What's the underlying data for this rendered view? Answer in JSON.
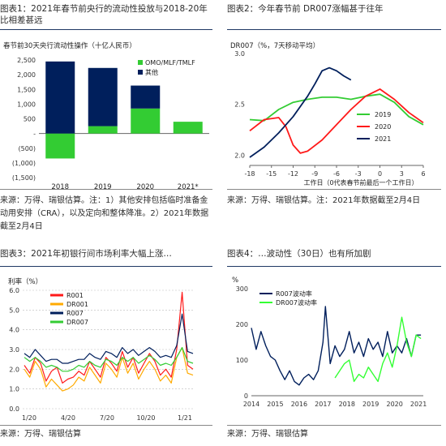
{
  "panels": [
    {
      "title": "图表1：2021年春节前央行的流动性投放与2018-20年比相差甚远",
      "note": "来源：万得、瑞银估算。注：1）其他安排包括临时准备金动用安排（CRA），以及定向和整体降准。2）2021年数据截至2月4日"
    },
    {
      "title": "图表2：今年春节前 DR007涨幅甚于往年",
      "note": "来源：万得、瑞银估算。注：2021年数据截至2月4日"
    },
    {
      "title": "图表3：2021年初银行间市场利率大幅上涨…",
      "note": "来源：万得、瑞银估算"
    },
    {
      "title": "图表4：…波动性（30日）也有所加剧",
      "note": "来源：万得、瑞银估算"
    }
  ],
  "chart_data": [
    {
      "type": "bar",
      "subtitle": "春节前30天央行流动性操作（十亿人民币）",
      "categories": [
        "2018",
        "2019",
        "2020",
        "2021*"
      ],
      "series": [
        {
          "name": "OMO/MLF/TMLF",
          "color": "#33cc33",
          "values": [
            -850,
            250,
            850,
            400
          ]
        },
        {
          "name": "其他",
          "color": "#001f5c",
          "values": [
            2450,
            1980,
            780,
            0
          ]
        }
      ],
      "yticks": [
        "2,500",
        "2,000",
        "1,500",
        "1,000",
        "500",
        "-",
        "(500)",
        "(1,000)",
        "(1,500)"
      ],
      "ylim": [
        -1500,
        2500
      ],
      "legend": "top-right"
    },
    {
      "type": "line",
      "subtitle": "DR007（%，7天移动平均）",
      "xlabel": "工作日（0代表春节前最后一个工作日）",
      "x_range": [
        -18,
        6
      ],
      "xticks": [
        "-18",
        "-15",
        "-12",
        "-9",
        "-6",
        "-3",
        "0",
        "3",
        "6"
      ],
      "yticks": [
        "3.0",
        "2.5",
        "2.0"
      ],
      "ylim": [
        1.9,
        3.0
      ],
      "series": [
        {
          "name": "2019",
          "color": "#33cc33",
          "x": [
            -18,
            -16,
            -14,
            -12,
            -10,
            -8,
            -6,
            -4,
            -2,
            0,
            2,
            4,
            6
          ],
          "y": [
            2.35,
            2.34,
            2.45,
            2.52,
            2.55,
            2.57,
            2.57,
            2.55,
            2.58,
            2.6,
            2.52,
            2.38,
            2.3
          ]
        },
        {
          "name": "2020",
          "color": "#ff1a1a",
          "x": [
            -18,
            -16,
            -14,
            -13,
            -12,
            -11,
            -10,
            -8,
            -6,
            -4,
            -2,
            0,
            2,
            4,
            6
          ],
          "y": [
            2.24,
            2.35,
            2.37,
            2.28,
            2.1,
            2.02,
            2.04,
            2.15,
            2.3,
            2.45,
            2.58,
            2.65,
            2.55,
            2.42,
            2.32
          ]
        },
        {
          "name": "2021",
          "color": "#001f5c",
          "x": [
            -18,
            -16,
            -14,
            -12,
            -10,
            -9,
            -8,
            -7,
            -6,
            -5,
            -4
          ],
          "y": [
            1.98,
            2.08,
            2.22,
            2.38,
            2.58,
            2.7,
            2.83,
            2.86,
            2.83,
            2.78,
            2.74
          ]
        }
      ],
      "legend": "bottom-right"
    },
    {
      "type": "line",
      "subtitle": "利率（%）",
      "xticks": [
        "1/20",
        "4/20",
        "7/20",
        "10/20",
        "1/21"
      ],
      "yticks": [
        "6.0",
        "5.0",
        "4.0",
        "3.0",
        "2.0",
        "1.0",
        "0.0"
      ],
      "ylim": [
        0,
        6
      ],
      "series": [
        {
          "name": "R001",
          "color": "#ff1a1a",
          "y": [
            2.2,
            1.8,
            2.6,
            2.3,
            1.4,
            1.9,
            2.1,
            1.3,
            1.5,
            1.6,
            1.9,
            1.7,
            2.4,
            2.0,
            1.6,
            2.6,
            2.3,
            1.9,
            2.9,
            2.1,
            2.6,
            1.8,
            2.3,
            2.8,
            2.4,
            1.7,
            2.0,
            1.6,
            3.0,
            5.9,
            2.2,
            2.0
          ]
        },
        {
          "name": "DR001",
          "color": "#ffaa00",
          "y": [
            2.0,
            1.6,
            2.4,
            2.0,
            1.1,
            1.5,
            1.2,
            0.9,
            1.0,
            1.2,
            1.6,
            1.4,
            2.1,
            1.7,
            1.3,
            2.3,
            2.0,
            1.6,
            2.6,
            1.8,
            2.3,
            1.5,
            2.0,
            2.4,
            2.0,
            1.4,
            1.7,
            1.3,
            2.6,
            3.1,
            1.8,
            1.7
          ]
        },
        {
          "name": "R007",
          "color": "#001f5c",
          "y": [
            2.8,
            2.6,
            3.0,
            2.7,
            2.4,
            2.5,
            2.5,
            2.3,
            2.3,
            2.4,
            2.5,
            2.5,
            2.8,
            2.6,
            2.5,
            2.9,
            2.8,
            2.6,
            3.1,
            2.8,
            3.0,
            2.7,
            2.9,
            3.1,
            2.9,
            2.6,
            2.7,
            2.6,
            3.2,
            4.8,
            2.9,
            2.8
          ]
        },
        {
          "name": "DR007",
          "color": "#33cc33",
          "y": [
            2.6,
            2.4,
            2.6,
            2.4,
            2.1,
            2.2,
            2.1,
            1.9,
            1.9,
            2.0,
            2.2,
            2.1,
            2.4,
            2.2,
            2.1,
            2.5,
            2.4,
            2.2,
            2.6,
            2.4,
            2.6,
            2.3,
            2.5,
            2.7,
            2.5,
            2.2,
            2.3,
            2.2,
            2.6,
            3.1,
            2.4,
            2.3
          ]
        }
      ],
      "legend": "top-right"
    },
    {
      "type": "line",
      "subtitle": "%",
      "xticks": [
        "2014",
        "2015",
        "2016",
        "2017",
        "2018",
        "2019",
        "2020",
        "2021"
      ],
      "yticks": [
        "300",
        "200",
        "100",
        "0"
      ],
      "ylim": [
        0,
        300
      ],
      "series": [
        {
          "name": "R007波动率",
          "color": "#001f5c",
          "x": [
            2014.0,
            2014.2,
            2014.4,
            2014.6,
            2014.8,
            2015.0,
            2015.2,
            2015.4,
            2015.6,
            2015.8,
            2016.0,
            2016.2,
            2016.4,
            2016.6,
            2016.8,
            2017.0,
            2017.1,
            2017.3,
            2017.5,
            2017.7,
            2017.9,
            2018.1,
            2018.3,
            2018.5,
            2018.7,
            2018.9,
            2019.1,
            2019.3,
            2019.5,
            2019.7,
            2019.9,
            2020.1,
            2020.3,
            2020.5,
            2020.7,
            2020.9,
            2021.1
          ],
          "y": [
            190,
            130,
            180,
            140,
            110,
            100,
            70,
            45,
            70,
            40,
            30,
            50,
            60,
            45,
            70,
            150,
            250,
            90,
            140,
            110,
            130,
            180,
            120,
            150,
            110,
            160,
            130,
            150,
            110,
            180,
            120,
            140,
            120,
            160,
            110,
            170,
            170
          ]
        },
        {
          "name": "DR007波动率",
          "color": "#33ff33",
          "x": [
            2017.5,
            2017.7,
            2017.9,
            2018.1,
            2018.3,
            2018.5,
            2018.7,
            2018.9,
            2019.1,
            2019.3,
            2019.5,
            2019.7,
            2019.9,
            2020.1,
            2020.3,
            2020.5,
            2020.7,
            2020.9,
            2021.1
          ],
          "y": [
            50,
            70,
            90,
            100,
            40,
            60,
            50,
            80,
            60,
            40,
            90,
            120,
            80,
            140,
            220,
            150,
            110,
            170,
            160
          ]
        }
      ],
      "legend": "top-left"
    }
  ]
}
